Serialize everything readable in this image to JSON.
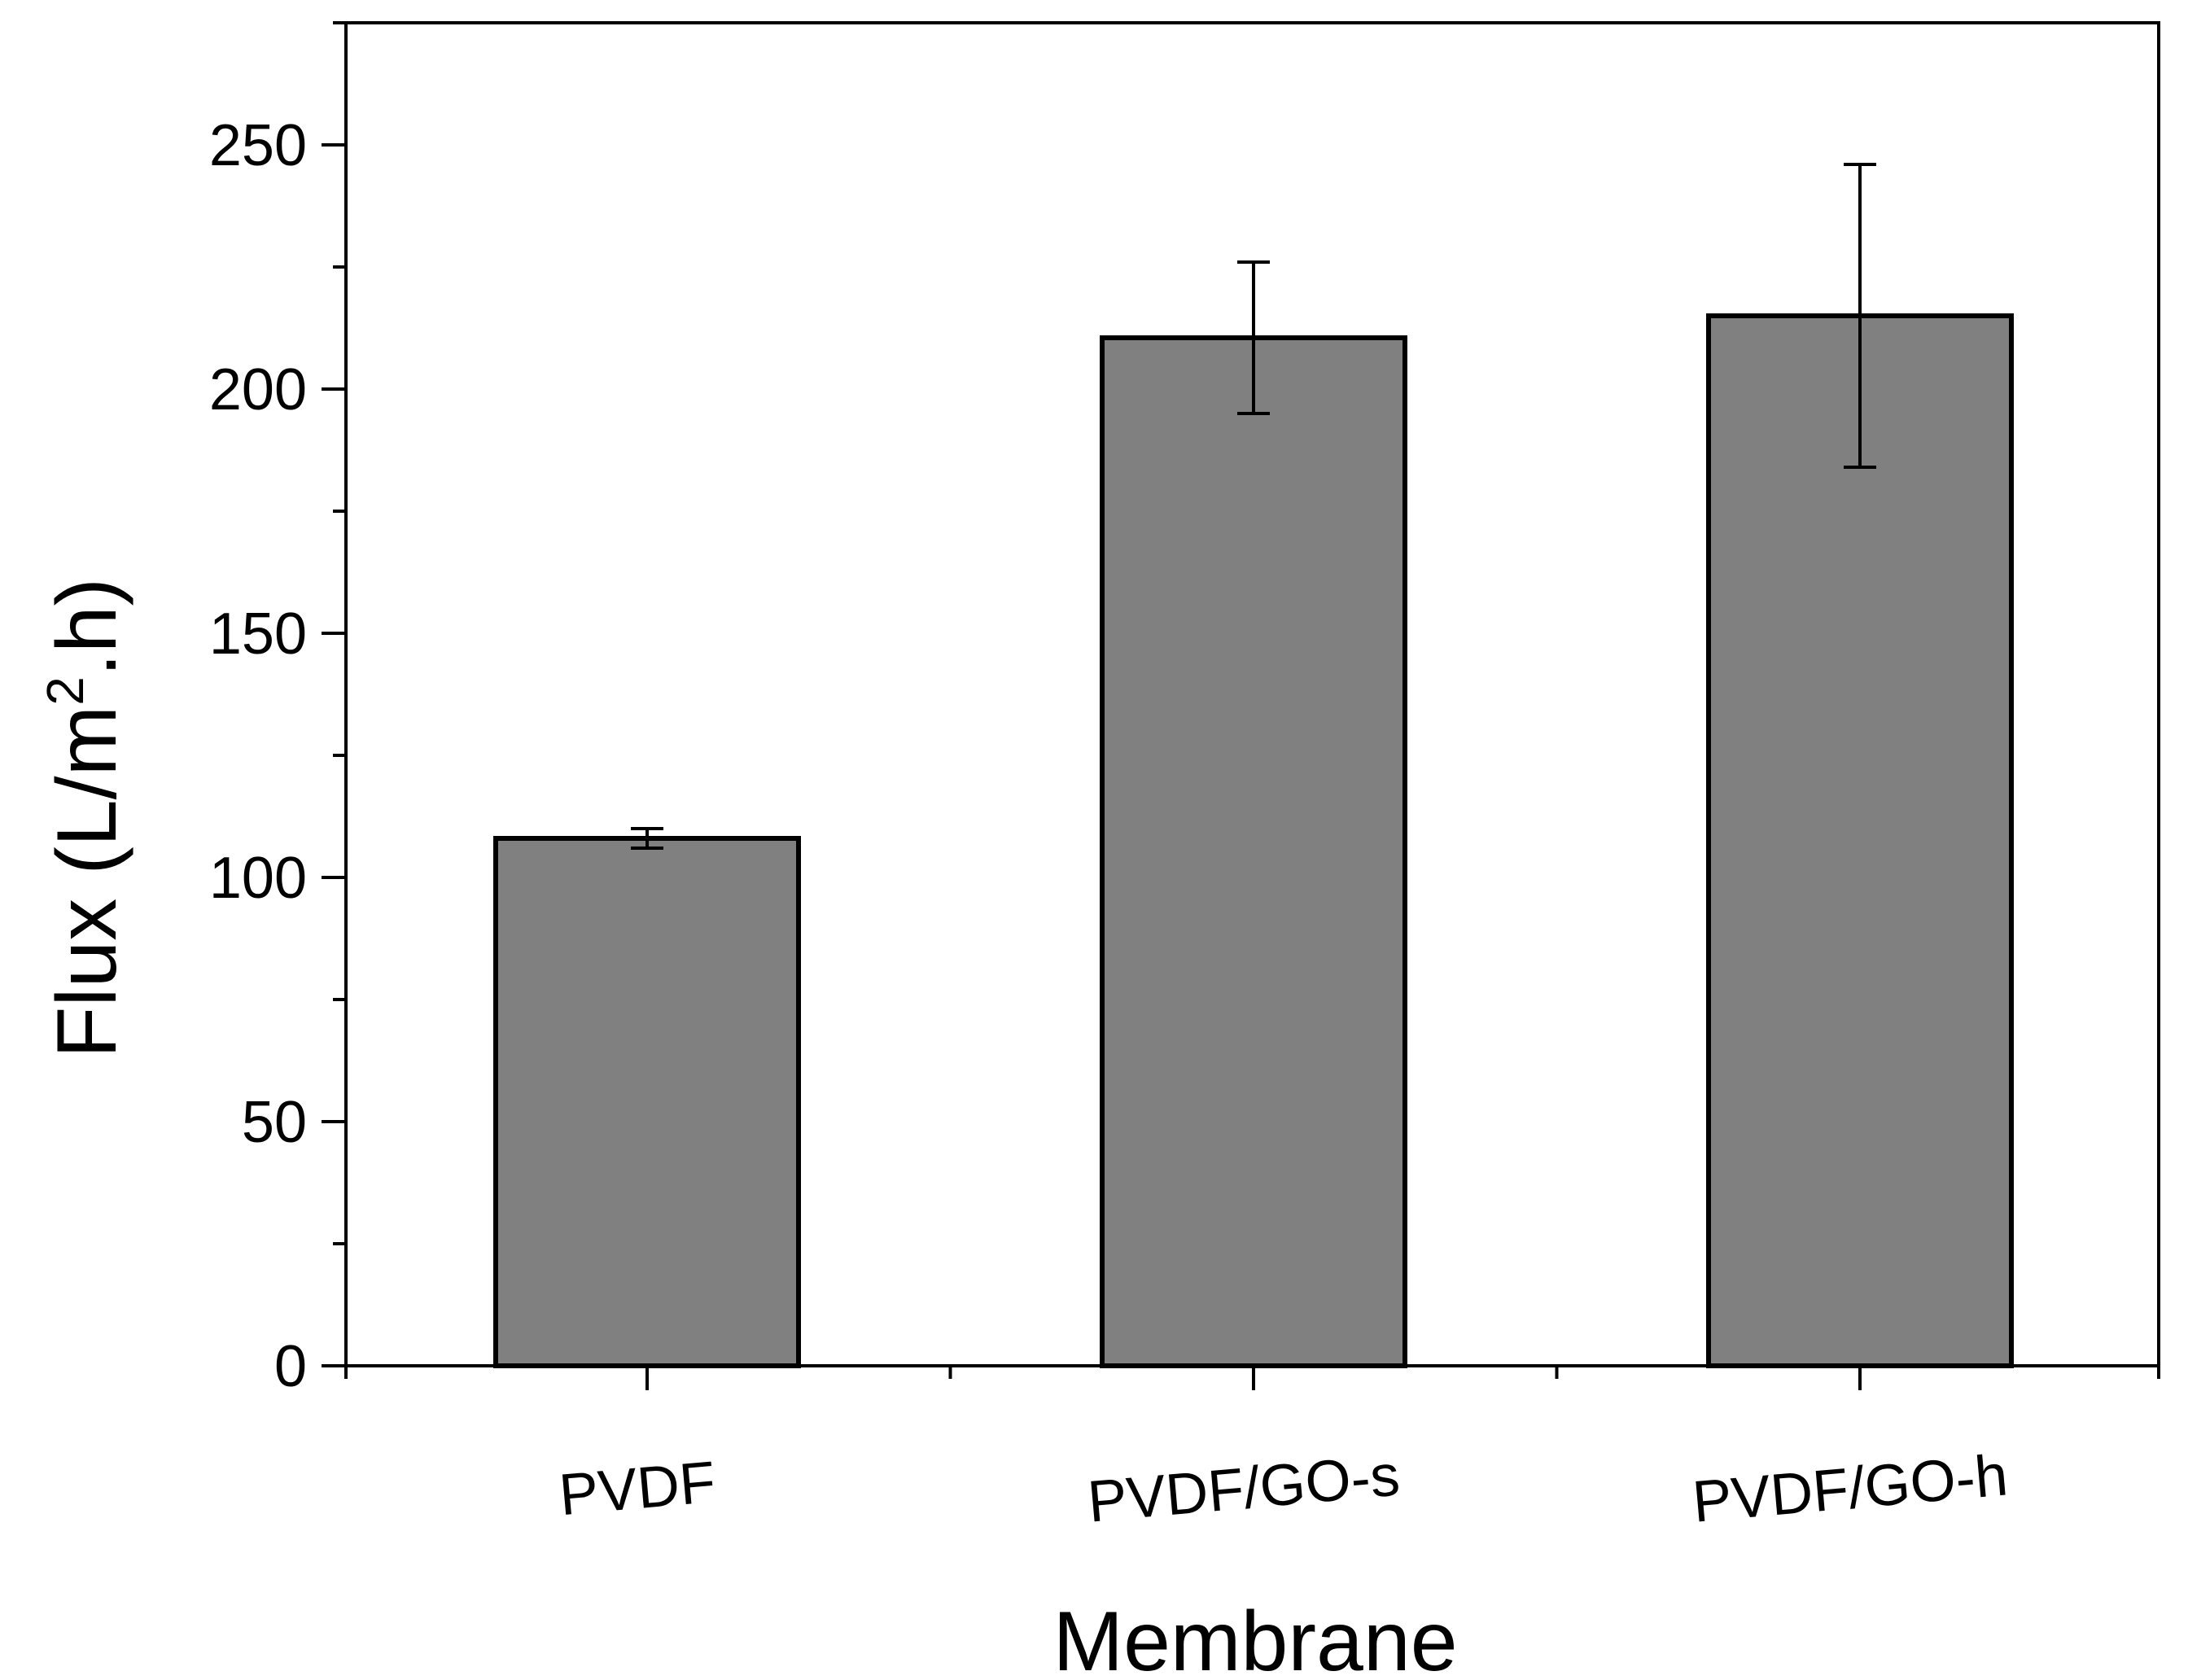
{
  "chart_data": {
    "type": "bar",
    "title": "",
    "xlabel": "Membrane",
    "ylabel": {
      "main": "Flux (L/m",
      "sup": "2",
      "end": ".h)"
    },
    "categories": [
      "PVDF",
      "PVDF/GO-s",
      "PVDF/GO-h"
    ],
    "values": [
      108,
      210.5,
      215
    ],
    "errors": [
      2,
      15.5,
      31
    ],
    "ylim": [
      0,
      275
    ],
    "yticks": [
      0,
      50,
      100,
      150,
      200,
      250
    ],
    "ytick_labels": [
      "0",
      "50",
      "100",
      "150",
      "200",
      "250"
    ],
    "grid": false,
    "bar_color": "#808080",
    "edge_color": "#000000"
  }
}
